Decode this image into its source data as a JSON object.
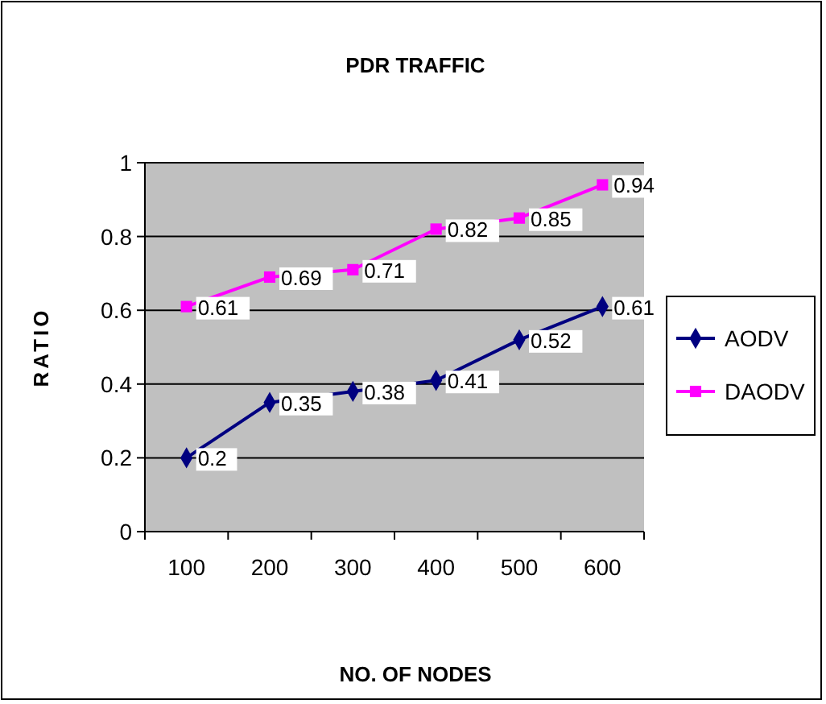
{
  "chart_data": {
    "type": "line",
    "title": "PDR TRAFFIC",
    "xlabel": "NO. OF NODES",
    "ylabel": "RATIO",
    "categories": [
      "100",
      "200",
      "300",
      "400",
      "500",
      "600"
    ],
    "series": [
      {
        "name": "AODV",
        "color": "#000080",
        "marker": "diamond",
        "values": [
          0.2,
          0.35,
          0.38,
          0.41,
          0.52,
          0.61
        ]
      },
      {
        "name": "DAODV",
        "color": "#ff00ff",
        "marker": "square",
        "values": [
          0.61,
          0.69,
          0.71,
          0.82,
          0.85,
          0.94
        ]
      }
    ],
    "ylim": [
      0,
      1
    ],
    "yticks": [
      0,
      0.2,
      0.4,
      0.6,
      0.8,
      1
    ],
    "grid": "y",
    "legend": "right",
    "data_labels": true
  }
}
